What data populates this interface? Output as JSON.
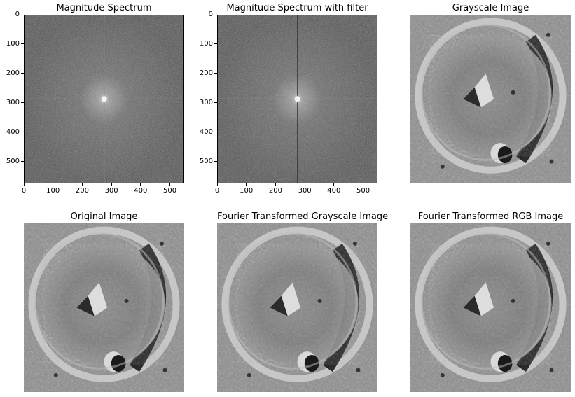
{
  "figure": {
    "panels": [
      {
        "title": "Magnitude Spectrum",
        "kind": "spectrum"
      },
      {
        "title": "Magnitude Spectrum with filter",
        "kind": "spectrum_filtered"
      },
      {
        "title": "Grayscale Image",
        "kind": "crater"
      },
      {
        "title": "Original Image",
        "kind": "crater"
      },
      {
        "title": "Fourier Transformed Grayscale Image",
        "kind": "crater"
      },
      {
        "title": "Fourier Transformed RGB Image",
        "kind": "crater"
      }
    ]
  },
  "chart_data": [
    {
      "type": "heatmap",
      "title": "Magnitude Spectrum",
      "xlim": [
        0,
        549
      ],
      "ylim": [
        575,
        0
      ],
      "xticks": [
        0,
        100,
        200,
        300,
        400,
        500
      ],
      "yticks": [
        0,
        100,
        200,
        300,
        400,
        500
      ],
      "peak": {
        "x": 275,
        "y": 287
      }
    },
    {
      "type": "heatmap",
      "title": "Magnitude Spectrum with filter",
      "xlim": [
        0,
        549
      ],
      "ylim": [
        575,
        0
      ],
      "xticks": [
        0,
        100,
        200,
        300,
        400,
        500
      ],
      "yticks": [
        0,
        100,
        200,
        300,
        400,
        500
      ],
      "peak": {
        "x": 275,
        "y": 287
      }
    }
  ]
}
